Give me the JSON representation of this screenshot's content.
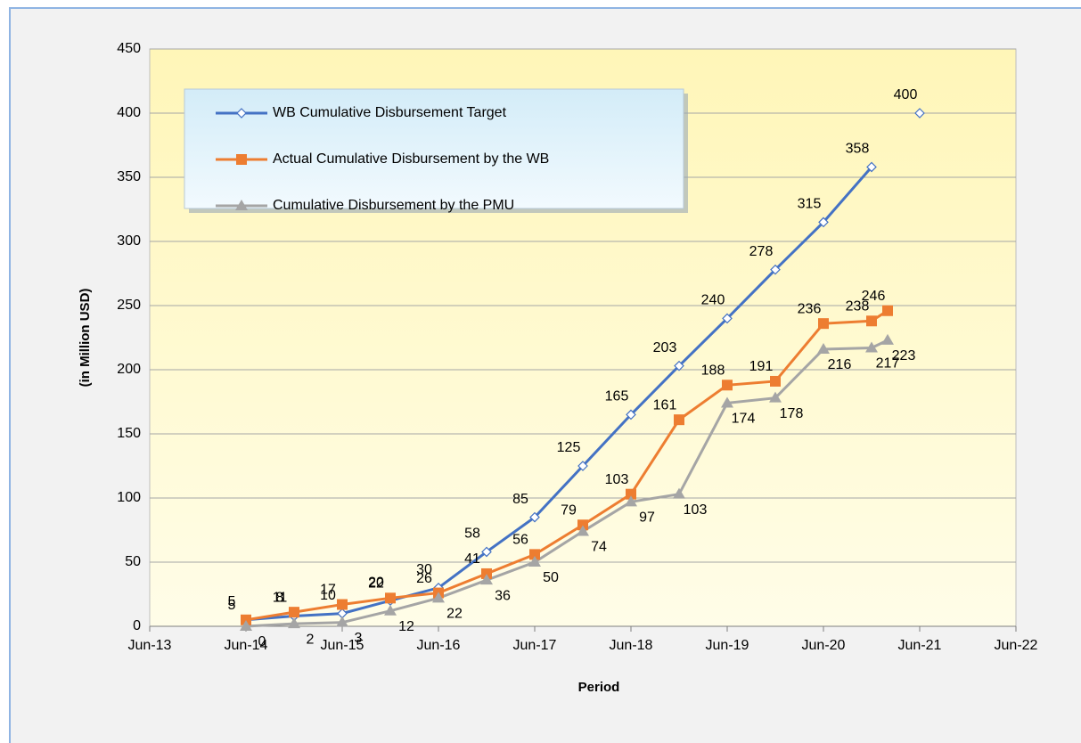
{
  "chart_data": {
    "type": "line",
    "x_label": "Period",
    "y_label": "(in Million USD)",
    "x": [
      "Jun-14",
      "Dec-14",
      "Jun-15",
      "Dec-15",
      "Jun-16",
      "Dec-16",
      "Jun-17",
      "Dec-17",
      "Jun-18",
      "Dec-18",
      "Jun-19",
      "Dec-19",
      "Jun-20",
      "Dec-20",
      "Feb-21",
      "Jun-21"
    ],
    "xlim": [
      "Jun-13",
      "Jun-22"
    ],
    "xticks": [
      "Jun-13",
      "Jun-14",
      "Jun-15",
      "Jun-16",
      "Jun-17",
      "Jun-18",
      "Jun-19",
      "Jun-20",
      "Jun-21",
      "Jun-22"
    ],
    "ylim": [
      0,
      450
    ],
    "yticks": [
      0,
      50,
      100,
      150,
      200,
      250,
      300,
      350,
      400,
      450
    ],
    "grid": true,
    "series": [
      {
        "name": "WB Cumulative Disbursement Target",
        "color": "#4472c4",
        "marker": "diamond",
        "values": [
          5,
          8,
          10,
          20,
          30,
          58,
          85,
          125,
          165,
          203,
          240,
          278,
          315,
          358,
          null,
          400
        ]
      },
      {
        "name": "Actual  Cumulative Disbursement by the WB",
        "color": "#ed7d31",
        "marker": "square",
        "values": [
          5,
          11,
          17,
          22,
          26,
          41,
          56,
          79,
          103,
          161,
          188,
          191,
          236,
          238,
          246,
          null
        ]
      },
      {
        "name": "Cumulative Disbursement by the PMU",
        "color": "#a5a5a5",
        "marker": "triangle",
        "values": [
          0,
          2,
          3,
          12,
          22,
          36,
          50,
          74,
          97,
          103,
          174,
          178,
          216,
          217,
          223,
          null
        ]
      }
    ]
  }
}
